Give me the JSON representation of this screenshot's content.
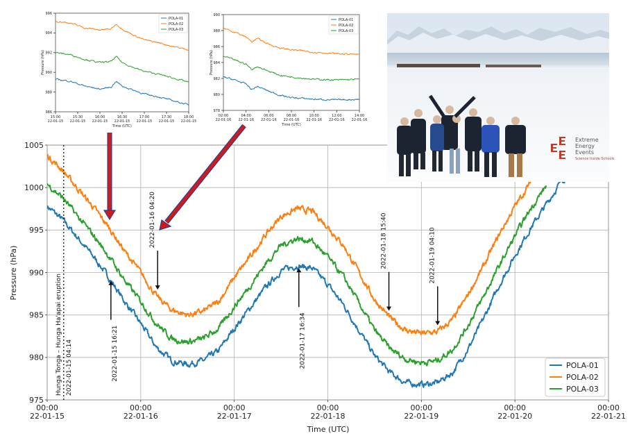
{
  "chart_data": [
    {
      "type": "line",
      "xlabel": "Time (UTC)",
      "ylabel": "Pressure (hPa)",
      "ylim": [
        975,
        1005
      ],
      "yticks": [
        975,
        980,
        985,
        990,
        995,
        1000,
        1005
      ],
      "xlim": [
        "2022-01-15 00:00",
        "2022-01-21 00:00"
      ],
      "xticks": [
        {
          "t": "2022-01-15 00:00",
          "time": "00:00",
          "date": "22-01-15"
        },
        {
          "t": "2022-01-16 00:00",
          "time": "00:00",
          "date": "22-01-16"
        },
        {
          "t": "2022-01-17 00:00",
          "time": "00:00",
          "date": "22-01-17"
        },
        {
          "t": "2022-01-18 00:00",
          "time": "00:00",
          "date": "22-01-18"
        },
        {
          "t": "2022-01-19 00:00",
          "time": "00:00",
          "date": "22-01-19"
        },
        {
          "t": "2022-01-20 00:00",
          "time": "00:00",
          "date": "22-01-20"
        },
        {
          "t": "2022-01-21 00:00",
          "time": "00:00",
          "date": "22-01-21"
        }
      ],
      "legend_position": "bottom-right",
      "series": [
        {
          "name": "POLA-01",
          "color": "#1f77b4",
          "x": [
            "2022-01-15 00:00",
            "2022-01-15 04:00",
            "2022-01-15 08:00",
            "2022-01-15 12:00",
            "2022-01-15 16:00",
            "2022-01-15 20:00",
            "2022-01-16 00:00",
            "2022-01-16 04:00",
            "2022-01-16 08:00",
            "2022-01-16 12:00",
            "2022-01-16 16:00",
            "2022-01-16 20:00",
            "2022-01-17 00:00",
            "2022-01-17 04:00",
            "2022-01-17 08:00",
            "2022-01-17 12:00",
            "2022-01-17 16:00",
            "2022-01-17 20:00",
            "2022-01-18 00:00",
            "2022-01-18 04:00",
            "2022-01-18 08:00",
            "2022-01-18 12:00",
            "2022-01-18 16:00",
            "2022-01-18 20:00",
            "2022-01-19 00:00",
            "2022-01-19 04:00",
            "2022-01-19 08:00",
            "2022-01-19 12:00",
            "2022-01-19 16:00",
            "2022-01-19 20:00",
            "2022-01-20 00:00",
            "2022-01-20 04:00",
            "2022-01-20 08:00",
            "2022-01-20 12:00",
            "2022-01-20 16:00"
          ],
          "y": [
            997.8,
            996.2,
            994.0,
            991.8,
            989.3,
            986.5,
            984.0,
            981.2,
            979.6,
            979.2,
            979.6,
            980.8,
            983.4,
            985.8,
            988.2,
            990.2,
            990.8,
            990.5,
            988.6,
            986.2,
            983.2,
            980.2,
            978.2,
            977.0,
            976.8,
            977.0,
            978.2,
            981.0,
            984.6,
            988.5,
            992.0,
            995.2,
            998.0,
            1000.8,
            1002.5
          ]
        },
        {
          "name": "POLA-02",
          "color": "#ff7f0e",
          "x": [
            "2022-01-15 00:00",
            "2022-01-15 04:00",
            "2022-01-15 08:00",
            "2022-01-15 12:00",
            "2022-01-15 16:00",
            "2022-01-15 20:00",
            "2022-01-16 00:00",
            "2022-01-16 04:00",
            "2022-01-16 08:00",
            "2022-01-16 12:00",
            "2022-01-16 16:00",
            "2022-01-16 20:00",
            "2022-01-17 00:00",
            "2022-01-17 04:00",
            "2022-01-17 08:00",
            "2022-01-17 12:00",
            "2022-01-17 16:00",
            "2022-01-17 20:00",
            "2022-01-18 00:00",
            "2022-01-18 04:00",
            "2022-01-18 08:00",
            "2022-01-18 12:00",
            "2022-01-18 16:00",
            "2022-01-18 20:00",
            "2022-01-19 00:00",
            "2022-01-19 04:00",
            "2022-01-19 08:00",
            "2022-01-19 12:00",
            "2022-01-19 16:00",
            "2022-01-19 20:00",
            "2022-01-20 00:00",
            "2022-01-20 04:00"
          ],
          "y": [
            1003.8,
            1002.0,
            999.8,
            997.6,
            995.2,
            992.4,
            990.0,
            987.2,
            985.6,
            985.0,
            985.4,
            986.6,
            989.4,
            991.8,
            994.4,
            996.6,
            997.5,
            997.2,
            995.4,
            993.2,
            990.0,
            986.8,
            984.6,
            983.2,
            982.8,
            983.0,
            984.4,
            987.4,
            990.8,
            994.5,
            997.8,
            1000.6
          ]
        },
        {
          "name": "POLA-03",
          "color": "#2ca02c",
          "x": [
            "2022-01-15 00:00",
            "2022-01-15 04:00",
            "2022-01-15 08:00",
            "2022-01-15 12:00",
            "2022-01-15 16:00",
            "2022-01-15 20:00",
            "2022-01-16 00:00",
            "2022-01-16 04:00",
            "2022-01-16 08:00",
            "2022-01-16 12:00",
            "2022-01-16 16:00",
            "2022-01-16 20:00",
            "2022-01-17 00:00",
            "2022-01-17 04:00",
            "2022-01-17 08:00",
            "2022-01-17 12:00",
            "2022-01-17 16:00",
            "2022-01-17 20:00",
            "2022-01-18 00:00",
            "2022-01-18 04:00",
            "2022-01-18 08:00",
            "2022-01-18 12:00",
            "2022-01-18 16:00",
            "2022-01-18 20:00",
            "2022-01-19 00:00",
            "2022-01-19 04:00",
            "2022-01-19 08:00",
            "2022-01-19 12:00",
            "2022-01-19 16:00",
            "2022-01-19 20:00",
            "2022-01-20 00:00",
            "2022-01-20 04:00",
            "2022-01-20 08:00"
          ],
          "y": [
            1000.4,
            998.8,
            996.5,
            994.3,
            991.8,
            989.0,
            986.6,
            984.0,
            982.2,
            981.8,
            982.2,
            983.4,
            986.0,
            988.4,
            991.0,
            993.2,
            994.0,
            993.7,
            991.8,
            989.5,
            986.4,
            983.2,
            981.0,
            979.8,
            979.4,
            979.6,
            980.9,
            983.8,
            987.2,
            990.8,
            994.3,
            997.5,
            1000.2
          ]
        }
      ],
      "annotations": [
        {
          "label": "Hunga Tonga – Hunga Ha'apai eruption",
          "time": "2022-01-15 04:14",
          "text": "2022-01-15 04:14",
          "style": "dotted-vertical-line"
        },
        {
          "text": "2022-01-15 16:21",
          "time": "2022-01-15 16:21",
          "arrow": "up",
          "series": "POLA-01",
          "y": 989.5
        },
        {
          "text": "2022-01-16 04:20",
          "time": "2022-01-16 04:20",
          "arrow": "down",
          "series": "POLA-02",
          "y": 987.5
        },
        {
          "text": "2022-01-17 16:34",
          "time": "2022-01-17 16:34",
          "arrow": "up",
          "series": "POLA-01",
          "y": 991.0
        },
        {
          "text": "2022-01-18 15:40",
          "time": "2022-01-18 15:40",
          "arrow": "down",
          "series": "POLA-02",
          "y": 985.0
        },
        {
          "text": "2022-01-19 04:10",
          "time": "2022-01-19 04:10",
          "arrow": "down",
          "series": "POLA-02",
          "y": 983.3
        }
      ]
    },
    {
      "type": "line",
      "xlabel": "Time (UTC)",
      "ylabel": "Pressure (hPa)",
      "ylim": [
        986,
        996
      ],
      "yticks": [
        986,
        988,
        990,
        992,
        994,
        996
      ],
      "xticks": [
        {
          "t": "2022-01-15 15:00",
          "time": "15:00",
          "date": "22-01-15"
        },
        {
          "t": "2022-01-15 15:30",
          "time": "15:30",
          "date": "22-01-15"
        },
        {
          "t": "2022-01-15 16:00",
          "time": "16:00",
          "date": "22-01-15"
        },
        {
          "t": "2022-01-15 16:30",
          "time": "16:30",
          "date": "22-01-15"
        },
        {
          "t": "2022-01-15 17:00",
          "time": "17:00",
          "date": "22-01-15"
        },
        {
          "t": "2022-01-15 17:30",
          "time": "17:30",
          "date": "22-01-15"
        },
        {
          "t": "2022-01-15 18:00",
          "time": "18:00",
          "date": "22-01-15"
        }
      ],
      "legend_position": "top-right",
      "series": [
        {
          "name": "POLA-01",
          "color": "#1f77b4",
          "x": [
            "2022-01-15 15:00",
            "2022-01-15 15:20",
            "2022-01-15 15:40",
            "2022-01-15 16:00",
            "2022-01-15 16:15",
            "2022-01-15 16:22",
            "2022-01-15 16:30",
            "2022-01-15 16:45",
            "2022-01-15 17:00",
            "2022-01-15 17:20",
            "2022-01-15 17:40",
            "2022-01-15 18:00"
          ],
          "y": [
            989.3,
            989.1,
            988.6,
            988.3,
            988.5,
            989.1,
            988.6,
            988.2,
            987.8,
            987.5,
            987.1,
            986.7
          ]
        },
        {
          "name": "POLA-02",
          "color": "#ff7f0e",
          "x": [
            "2022-01-15 15:00",
            "2022-01-15 15:20",
            "2022-01-15 15:40",
            "2022-01-15 16:00",
            "2022-01-15 16:15",
            "2022-01-15 16:22",
            "2022-01-15 16:30",
            "2022-01-15 16:45",
            "2022-01-15 17:00",
            "2022-01-15 17:20",
            "2022-01-15 17:40",
            "2022-01-15 18:00"
          ],
          "y": [
            995.2,
            995.0,
            994.5,
            994.3,
            994.4,
            994.9,
            994.4,
            993.8,
            993.3,
            993.0,
            992.6,
            992.3
          ]
        },
        {
          "name": "POLA-03",
          "color": "#2ca02c",
          "x": [
            "2022-01-15 15:00",
            "2022-01-15 15:20",
            "2022-01-15 15:40",
            "2022-01-15 16:00",
            "2022-01-15 16:15",
            "2022-01-15 16:22",
            "2022-01-15 16:30",
            "2022-01-15 16:45",
            "2022-01-15 17:00",
            "2022-01-15 17:20",
            "2022-01-15 17:40",
            "2022-01-15 18:00"
          ],
          "y": [
            992.0,
            991.8,
            991.3,
            991.0,
            991.1,
            991.6,
            991.0,
            990.5,
            990.1,
            989.8,
            989.4,
            989.0
          ]
        }
      ]
    },
    {
      "type": "line",
      "xlabel": "Time (UTC)",
      "ylabel": "Pressure (hPa)",
      "ylim": [
        978,
        990
      ],
      "yticks": [
        978,
        980,
        982,
        984,
        986,
        988,
        990
      ],
      "xticks": [
        {
          "t": "2022-01-16 02:00",
          "time": "02:00",
          "date": "22-01-16"
        },
        {
          "t": "2022-01-16 04:00",
          "time": "04:00",
          "date": "22-01-16"
        },
        {
          "t": "2022-01-16 06:00",
          "time": "06:00",
          "date": "22-01-16"
        },
        {
          "t": "2022-01-16 08:00",
          "time": "08:00",
          "date": "22-01-16"
        },
        {
          "t": "2022-01-16 10:00",
          "time": "10:00",
          "date": "22-01-16"
        },
        {
          "t": "2022-01-16 12:00",
          "time": "12:00",
          "date": "22-01-16"
        },
        {
          "t": "2022-01-16 14:00",
          "time": "14:00",
          "date": "22-01-16"
        }
      ],
      "legend_position": "top-right",
      "series": [
        {
          "name": "POLA-01",
          "color": "#1f77b4",
          "x": [
            "2022-01-16 02:00",
            "2022-01-16 03:00",
            "2022-01-16 04:00",
            "2022-01-16 04:30",
            "2022-01-16 05:00",
            "2022-01-16 06:00",
            "2022-01-16 07:00",
            "2022-01-16 08:00",
            "2022-01-16 10:00",
            "2022-01-16 12:00",
            "2022-01-16 14:00"
          ],
          "y": [
            982.2,
            981.8,
            981.3,
            980.6,
            981.0,
            980.4,
            979.9,
            979.6,
            979.4,
            979.3,
            979.4
          ]
        },
        {
          "name": "POLA-02",
          "color": "#ff7f0e",
          "x": [
            "2022-01-16 02:00",
            "2022-01-16 03:00",
            "2022-01-16 04:00",
            "2022-01-16 04:30",
            "2022-01-16 05:00",
            "2022-01-16 06:00",
            "2022-01-16 07:00",
            "2022-01-16 08:00",
            "2022-01-16 10:00",
            "2022-01-16 12:00",
            "2022-01-16 14:00"
          ],
          "y": [
            988.3,
            987.8,
            987.2,
            986.6,
            987.0,
            986.3,
            985.8,
            985.6,
            985.3,
            985.1,
            985.0
          ]
        },
        {
          "name": "POLA-03",
          "color": "#2ca02c",
          "x": [
            "2022-01-16 02:00",
            "2022-01-16 03:00",
            "2022-01-16 04:00",
            "2022-01-16 04:30",
            "2022-01-16 05:00",
            "2022-01-16 06:00",
            "2022-01-16 07:00",
            "2022-01-16 08:00",
            "2022-01-16 10:00",
            "2022-01-16 12:00",
            "2022-01-16 14:00"
          ],
          "y": [
            984.8,
            984.3,
            983.8,
            983.1,
            983.5,
            982.9,
            982.4,
            982.2,
            981.9,
            981.8,
            981.9
          ]
        }
      ]
    }
  ],
  "logo": {
    "line1": "Extreme",
    "line2": "Energy",
    "line3": "Events",
    "tagline": "Science Inside Schools"
  }
}
